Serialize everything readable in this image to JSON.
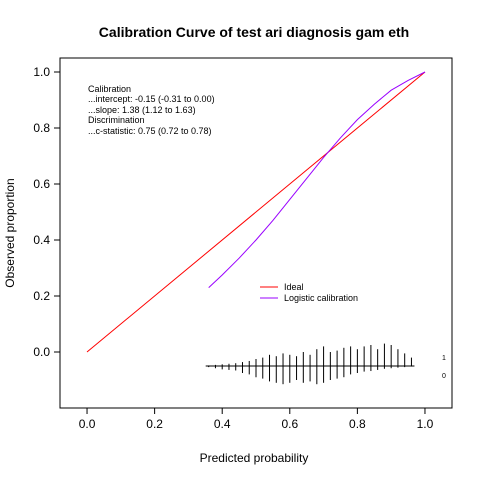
{
  "chart_data": {
    "type": "line",
    "title": "Calibration Curve of test ari diagnosis gam eth",
    "xlabel": "Predicted probability",
    "ylabel": "Observed proportion",
    "xlim": [
      -0.08,
      1.08
    ],
    "ylim": [
      -0.2,
      1.05
    ],
    "xticks": [
      "0.0",
      "0.2",
      "0.4",
      "0.6",
      "0.8",
      "1.0"
    ],
    "yticks": [
      "0.0",
      "0.2",
      "0.4",
      "0.6",
      "0.8",
      "1.0"
    ],
    "grid": false,
    "legend_position": "center-right",
    "stats_text": [
      "Calibration",
      "...intercept: -0.15 (-0.31 to 0.00)",
      "...slope: 1.38 (1.12 to 1.63)",
      "Discrimination",
      "...c-statistic: 0.75 (0.72 to 0.78)"
    ],
    "series": [
      {
        "name": "Ideal",
        "color": "#ff0000",
        "x": [
          0,
          1
        ],
        "y": [
          0,
          1
        ]
      },
      {
        "name": "Logistic calibration",
        "color": "#9900ff",
        "x": [
          0.36,
          0.4,
          0.45,
          0.5,
          0.55,
          0.6,
          0.65,
          0.7,
          0.75,
          0.8,
          0.85,
          0.9,
          0.95,
          1.0
        ],
        "y": [
          0.23,
          0.275,
          0.335,
          0.4,
          0.47,
          0.545,
          0.62,
          0.695,
          0.765,
          0.83,
          0.885,
          0.935,
          0.97,
          1.0
        ]
      }
    ],
    "rug": {
      "baseline_y": -0.05,
      "label_event": "1",
      "label_nonevent": "0",
      "positions": [
        0.36,
        0.38,
        0.4,
        0.42,
        0.44,
        0.46,
        0.48,
        0.5,
        0.52,
        0.54,
        0.56,
        0.58,
        0.6,
        0.62,
        0.64,
        0.66,
        0.68,
        0.7,
        0.72,
        0.74,
        0.76,
        0.78,
        0.8,
        0.82,
        0.84,
        0.86,
        0.88,
        0.9,
        0.92,
        0.94,
        0.96
      ],
      "up_heights": [
        0.002,
        0.004,
        0.006,
        0.008,
        0.01,
        0.014,
        0.018,
        0.025,
        0.03,
        0.04,
        0.035,
        0.045,
        0.04,
        0.035,
        0.05,
        0.04,
        0.06,
        0.07,
        0.05,
        0.055,
        0.065,
        0.07,
        0.06,
        0.07,
        0.075,
        0.06,
        0.08,
        0.075,
        0.06,
        0.045,
        0.03
      ],
      "down_heights": [
        0.004,
        0.008,
        0.012,
        0.014,
        0.016,
        0.025,
        0.03,
        0.04,
        0.045,
        0.055,
        0.06,
        0.065,
        0.06,
        0.05,
        0.06,
        0.055,
        0.065,
        0.06,
        0.05,
        0.045,
        0.04,
        0.03,
        0.025,
        0.02,
        0.018,
        0.014,
        0.01,
        0.008,
        0.006,
        0.004,
        0.002
      ]
    }
  }
}
